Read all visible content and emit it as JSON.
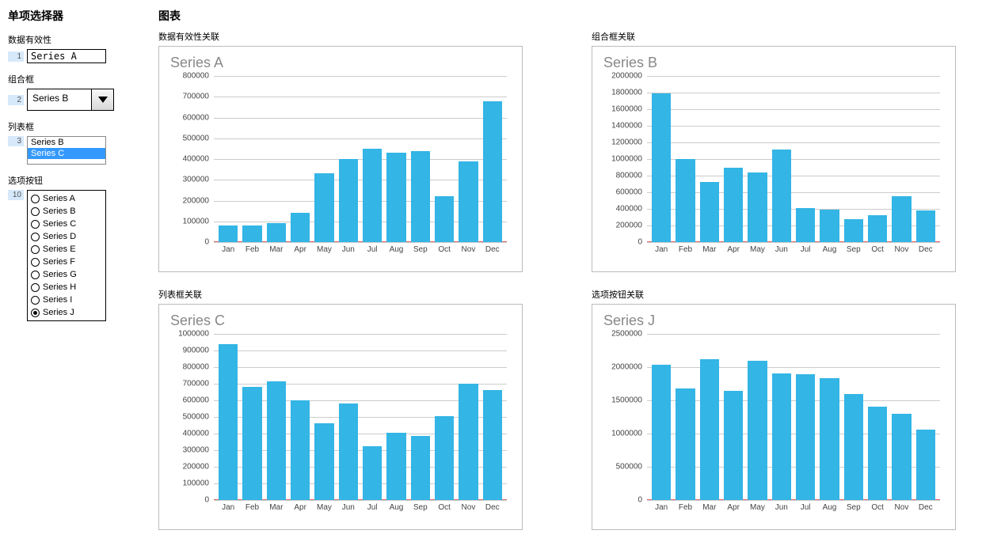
{
  "sidebar": {
    "title": "单项选择器",
    "data_validity": {
      "label": "数据有效性",
      "row": "1",
      "value": "Series A"
    },
    "combo": {
      "label": "组合框",
      "row": "2",
      "value": "Series B"
    },
    "listbox": {
      "label": "列表框",
      "row": "3",
      "items": [
        "Series B",
        "Series C"
      ],
      "selected_index": 1
    },
    "radios": {
      "label": "选项按钮",
      "row": "10",
      "options": [
        "Series A",
        "Series B",
        "Series C",
        "Series D",
        "Series E",
        "Series F",
        "Series G",
        "Series H",
        "Series I",
        "Series J"
      ],
      "selected_index": 9
    }
  },
  "main": {
    "title": "图表"
  },
  "months": [
    "Jan",
    "Feb",
    "Mar",
    "Apr",
    "May",
    "Jun",
    "Jul",
    "Aug",
    "Sep",
    "Oct",
    "Nov",
    "Dec"
  ],
  "bar_color": "#33b5e5",
  "grid_color": "#cccccc",
  "baseline_color": "#d66",
  "charts": [
    {
      "key": "chart_a",
      "name": "chart-data-validity",
      "section_label": "数据有效性关联",
      "title": "Series A",
      "ymax": 800000,
      "ystep": 100000,
      "values": [
        80000,
        80000,
        90000,
        140000,
        330000,
        400000,
        450000,
        430000,
        440000,
        220000,
        390000,
        680000
      ]
    },
    {
      "key": "chart_b",
      "name": "chart-combo",
      "section_label": "组合框关联",
      "title": "Series B",
      "ymax": 2000000,
      "ystep": 200000,
      "values": [
        1790000,
        1000000,
        720000,
        900000,
        840000,
        1110000,
        410000,
        390000,
        280000,
        320000,
        550000,
        380000
      ]
    },
    {
      "key": "chart_c",
      "name": "chart-listbox",
      "section_label": "列表框关联",
      "title": "Series C",
      "ymax": 1000000,
      "ystep": 100000,
      "values": [
        940000,
        680000,
        715000,
        600000,
        460000,
        580000,
        325000,
        405000,
        385000,
        505000,
        700000,
        660000
      ]
    },
    {
      "key": "chart_d",
      "name": "chart-radio",
      "section_label": "选项按钮关联",
      "title": "Series J",
      "ymax": 2500000,
      "ystep": 500000,
      "values": [
        2030000,
        1680000,
        2120000,
        1640000,
        2090000,
        1900000,
        1890000,
        1830000,
        1590000,
        1400000,
        1300000,
        1060000
      ]
    }
  ]
}
